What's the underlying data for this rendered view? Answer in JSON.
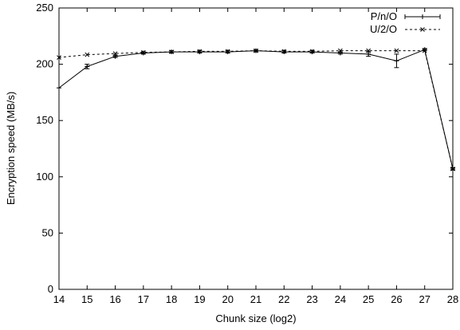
{
  "chart_data": {
    "type": "line",
    "title": "",
    "xlabel": "Chunk size (log2)",
    "ylabel": "Encryption speed (MB/s)",
    "xlim": [
      14,
      28
    ],
    "ylim": [
      0,
      250
    ],
    "xticks": [
      14,
      15,
      16,
      17,
      18,
      19,
      20,
      21,
      22,
      23,
      24,
      25,
      26,
      27,
      28
    ],
    "yticks": [
      0,
      50,
      100,
      150,
      200,
      250
    ],
    "grid": false,
    "legend_position": "top-right",
    "series": [
      {
        "name": "P/n/O",
        "style": "solid",
        "marker": "plus",
        "x": [
          14,
          15,
          16,
          17,
          18,
          19,
          20,
          21,
          22,
          23,
          24,
          25,
          26,
          27,
          28
        ],
        "y": [
          179,
          198,
          207,
          210,
          211,
          211,
          211,
          212,
          211,
          211,
          210,
          209,
          203,
          213,
          107
        ],
        "yerr": [
          0,
          2,
          1,
          1,
          1,
          1,
          1,
          1,
          1,
          1,
          1,
          2,
          6,
          1,
          1
        ]
      },
      {
        "name": "U/2/O",
        "style": "dashed",
        "marker": "cross",
        "x": [
          14,
          15,
          16,
          17,
          18,
          19,
          20,
          21,
          22,
          23,
          24,
          25,
          26,
          27,
          28
        ],
        "y": [
          206,
          208.5,
          209.5,
          210.5,
          211,
          211.5,
          211.5,
          212,
          211.5,
          211.5,
          212,
          212,
          212,
          212,
          107
        ]
      }
    ]
  }
}
